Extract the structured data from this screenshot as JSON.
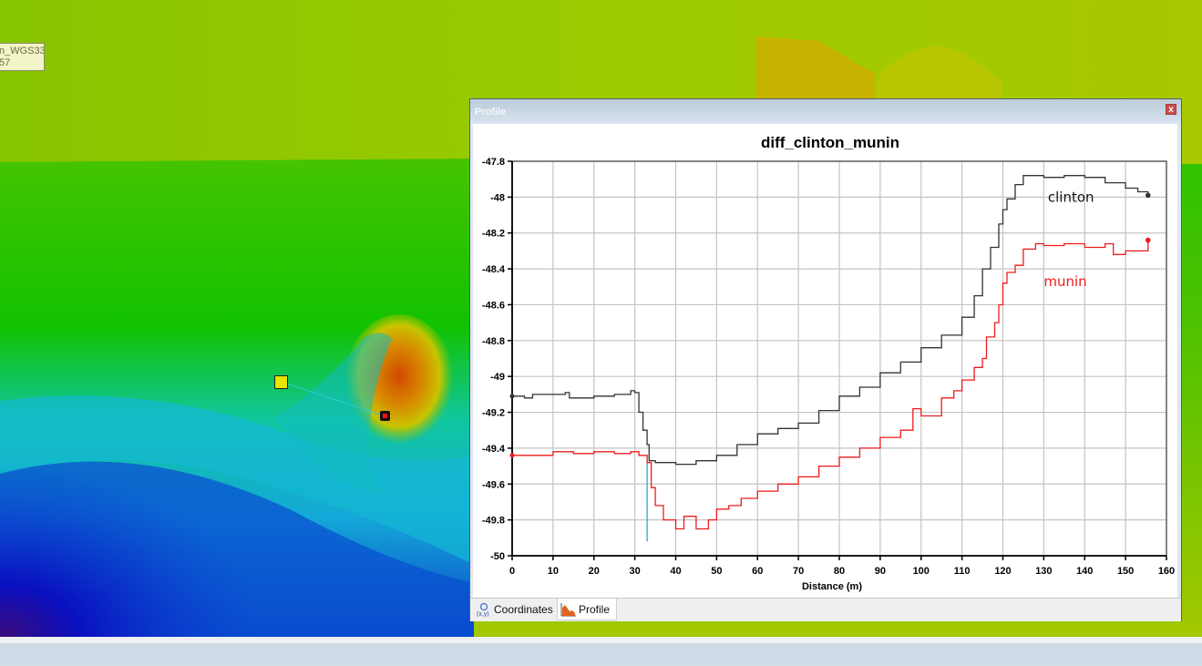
{
  "map": {
    "tooltip_lines": [
      "n_WGS33",
      "57"
    ],
    "profile_line": {
      "start_marker": {
        "x": 308,
        "y": 419,
        "color": "#e6e600"
      },
      "end_marker": {
        "x": 423,
        "y": 457,
        "color": "#ff0000"
      },
      "line_color": "#30c8d0"
    }
  },
  "profile_window": {
    "title": "Profile",
    "close_label": "x",
    "tabs": [
      {
        "label": "Coordinates",
        "icon": "xy-coordinates-icon",
        "active": false
      },
      {
        "label": "Profile",
        "icon": "profile-chart-icon",
        "active": true
      }
    ]
  },
  "chart_data": {
    "type": "line",
    "title": "diff_clinton_munin",
    "xlabel": "Distance (m)",
    "ylabel": "",
    "xlim": [
      0,
      160
    ],
    "ylim": [
      -50,
      -47.8
    ],
    "x_ticks": [
      0,
      10,
      20,
      30,
      40,
      50,
      60,
      70,
      80,
      90,
      100,
      110,
      120,
      130,
      140,
      150,
      160
    ],
    "y_ticks": [
      -47.8,
      -48,
      -48.2,
      -48.4,
      -48.6,
      -48.8,
      -49,
      -49.2,
      -49.4,
      -49.6,
      -49.8,
      -50
    ],
    "grid": true,
    "legend_position": "inline labels near curve ends",
    "cursor_marker": {
      "x": 33,
      "color": "#1a9fd6",
      "y_from": -49.47,
      "y_to": -49.92
    },
    "series": [
      {
        "name": "clinton",
        "color": "#333333",
        "label_pos": {
          "x": 131,
          "y": -48.0
        },
        "points": [
          [
            0,
            -49.11
          ],
          [
            3,
            -49.12
          ],
          [
            5,
            -49.1
          ],
          [
            10,
            -49.1
          ],
          [
            13,
            -49.09
          ],
          [
            14,
            -49.12
          ],
          [
            20,
            -49.11
          ],
          [
            25,
            -49.1
          ],
          [
            29,
            -49.08
          ],
          [
            30,
            -49.09
          ],
          [
            31,
            -49.2
          ],
          [
            32,
            -49.3
          ],
          [
            33,
            -49.38
          ],
          [
            33.5,
            -49.47
          ],
          [
            35,
            -49.48
          ],
          [
            40,
            -49.49
          ],
          [
            45,
            -49.47
          ],
          [
            50,
            -49.44
          ],
          [
            55,
            -49.38
          ],
          [
            60,
            -49.32
          ],
          [
            65,
            -49.29
          ],
          [
            70,
            -49.26
          ],
          [
            75,
            -49.19
          ],
          [
            80,
            -49.11
          ],
          [
            85,
            -49.06
          ],
          [
            90,
            -48.98
          ],
          [
            95,
            -48.92
          ],
          [
            100,
            -48.84
          ],
          [
            105,
            -48.77
          ],
          [
            110,
            -48.67
          ],
          [
            113,
            -48.55
          ],
          [
            115,
            -48.4
          ],
          [
            117,
            -48.28
          ],
          [
            119,
            -48.15
          ],
          [
            120,
            -48.07
          ],
          [
            121,
            -48.01
          ],
          [
            123,
            -47.93
          ],
          [
            125,
            -47.88
          ],
          [
            130,
            -47.89
          ],
          [
            135,
            -47.88
          ],
          [
            140,
            -47.89
          ],
          [
            145,
            -47.92
          ],
          [
            150,
            -47.95
          ],
          [
            153,
            -47.97
          ],
          [
            155.5,
            -47.99
          ]
        ]
      },
      {
        "name": "munin",
        "color": "#ee1c1c",
        "label_pos": {
          "x": 130,
          "y": -48.47
        },
        "points": [
          [
            0,
            -49.44
          ],
          [
            5,
            -49.44
          ],
          [
            10,
            -49.42
          ],
          [
            15,
            -49.43
          ],
          [
            20,
            -49.42
          ],
          [
            25,
            -49.43
          ],
          [
            29,
            -49.42
          ],
          [
            31,
            -49.44
          ],
          [
            33,
            -49.48
          ],
          [
            34,
            -49.62
          ],
          [
            35,
            -49.72
          ],
          [
            37,
            -49.8
          ],
          [
            40,
            -49.85
          ],
          [
            42,
            -49.78
          ],
          [
            45,
            -49.85
          ],
          [
            48,
            -49.8
          ],
          [
            50,
            -49.74
          ],
          [
            53,
            -49.72
          ],
          [
            56,
            -49.68
          ],
          [
            60,
            -49.64
          ],
          [
            65,
            -49.6
          ],
          [
            70,
            -49.56
          ],
          [
            75,
            -49.5
          ],
          [
            80,
            -49.45
          ],
          [
            85,
            -49.4
          ],
          [
            90,
            -49.34
          ],
          [
            95,
            -49.3
          ],
          [
            98,
            -49.18
          ],
          [
            100,
            -49.22
          ],
          [
            103,
            -49.22
          ],
          [
            105,
            -49.12
          ],
          [
            108,
            -49.08
          ],
          [
            110,
            -49.02
          ],
          [
            113,
            -48.95
          ],
          [
            115,
            -48.9
          ],
          [
            116,
            -48.78
          ],
          [
            118,
            -48.7
          ],
          [
            119,
            -48.6
          ],
          [
            120,
            -48.48
          ],
          [
            121,
            -48.42
          ],
          [
            123,
            -48.38
          ],
          [
            125,
            -48.29
          ],
          [
            128,
            -48.26
          ],
          [
            130,
            -48.27
          ],
          [
            135,
            -48.26
          ],
          [
            140,
            -48.28
          ],
          [
            145,
            -48.26
          ],
          [
            147,
            -48.32
          ],
          [
            150,
            -48.3
          ],
          [
            153,
            -48.3
          ],
          [
            155.5,
            -48.24
          ]
        ]
      }
    ]
  }
}
